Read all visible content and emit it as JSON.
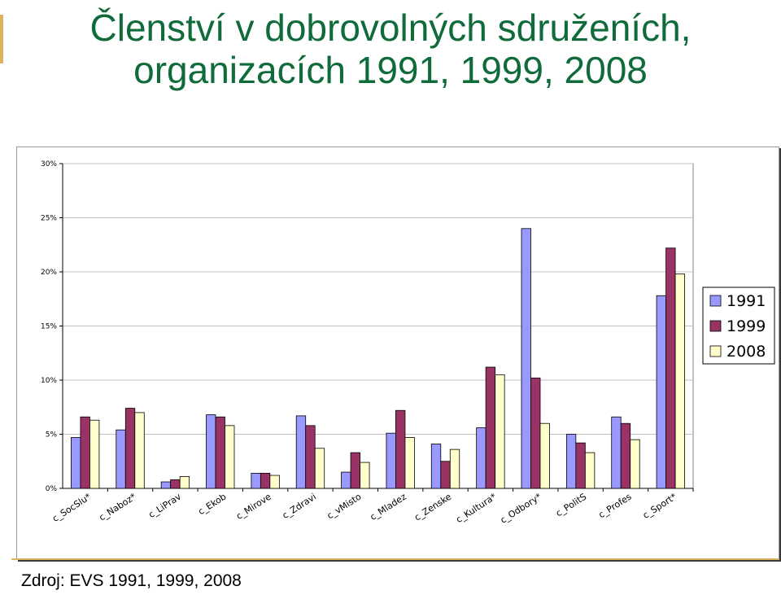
{
  "slide": {
    "title_line1": "Členství v dobrovolných sdruženích,",
    "title_line2": "organizacích 1991, 1999, 2008",
    "source": "Zdroj: EVS 1991, 1999, 2008"
  },
  "chart_data": {
    "type": "bar",
    "title": "",
    "xlabel": "",
    "ylabel": "",
    "ylim": [
      0,
      30
    ],
    "yticks": [
      0,
      5,
      10,
      15,
      20,
      25,
      30
    ],
    "ytick_labels": [
      "0%",
      "5%",
      "10%",
      "15%",
      "20%",
      "25%",
      "30%"
    ],
    "grid": true,
    "legend_position": "right",
    "categories": [
      "c_SocSlu*",
      "c_Naboz*",
      "c_LiPrav",
      "c_Ekob",
      "c_Mirove",
      "c_Zdravi",
      "c_vMisto",
      "c_Mladez",
      "c_Zenske",
      "c_Kultura*",
      "c_Odbory*",
      "c_PolitS",
      "c_Profes",
      "c_Sport*"
    ],
    "series": [
      {
        "name": "1991",
        "color": "#9999ff",
        "values": [
          4.7,
          5.4,
          0.6,
          6.8,
          1.4,
          6.7,
          1.5,
          5.1,
          4.1,
          5.6,
          24.0,
          5.0,
          6.6,
          17.8
        ]
      },
      {
        "name": "1999",
        "color": "#993366",
        "values": [
          6.6,
          7.4,
          0.8,
          6.6,
          1.4,
          5.8,
          3.3,
          7.2,
          2.5,
          11.2,
          10.2,
          4.2,
          6.0,
          22.2
        ]
      },
      {
        "name": "2008",
        "color": "#ffffcc",
        "values": [
          6.3,
          7.0,
          1.1,
          5.8,
          1.2,
          3.7,
          2.4,
          4.7,
          3.6,
          10.5,
          6.0,
          3.3,
          4.5,
          19.8
        ]
      }
    ]
  }
}
